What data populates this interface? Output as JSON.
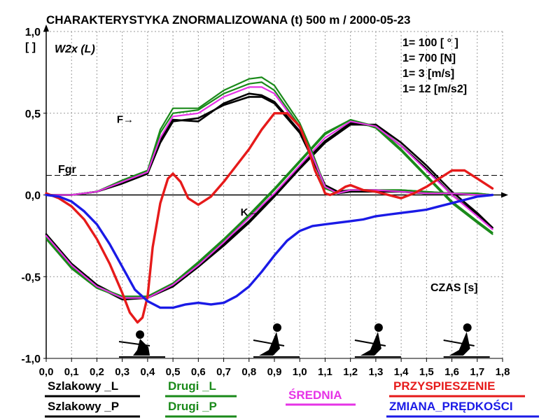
{
  "chart_data": {
    "type": "line",
    "title": "CHARAKTERYSTYKA ZNORMALIZOWANA (t)  500 m / 2000-05-23",
    "ylabel_unit": "[ ]",
    "subtitle": "W2x (L)",
    "xlabel": "CZAS  [s]",
    "xlim": [
      0,
      1.8
    ],
    "ylim": [
      -1,
      1
    ],
    "x_ticks": [
      "0,0",
      "0,1",
      "0,2",
      "0,3",
      "0,4",
      "0,5",
      "0,6",
      "0,7",
      "0,8",
      "0,9",
      "1,0",
      "1,1",
      "1,2",
      "1,3",
      "1,4",
      "1,5",
      "1,6",
      "1,7",
      "1,8"
    ],
    "y_ticks": [
      {
        "value": 1.0,
        "label": "1,0"
      },
      {
        "value": 0.5,
        "label": "0,5"
      },
      {
        "value": 0.0,
        "label": "0,0"
      },
      {
        "value": -0.5,
        "label": "-0,5"
      },
      {
        "value": -1.0,
        "label": "-1,0"
      }
    ],
    "grid": true,
    "scales": [
      "1= 100 [ ° ]",
      "1= 700 [N]",
      "1= 3 [m/s]",
      "1= 12 [m/s2]"
    ],
    "threshold": {
      "label": "Fgr",
      "value": 0.12
    },
    "annotations": [
      {
        "text": "F→",
        "x": 0.4,
        "y": 0.45
      },
      {
        "text": "K→",
        "x": 0.75,
        "y": -0.11
      }
    ],
    "series": [
      {
        "name": "Szlakowy _L",
        "color": "#000000",
        "group": "force",
        "x": [
          0,
          0.1,
          0.2,
          0.3,
          0.4,
          0.45,
          0.5,
          0.6,
          0.7,
          0.8,
          0.85,
          0.9,
          1.0,
          1.05,
          1.1,
          1.15,
          1.2,
          1.3,
          1.4,
          1.5,
          1.6,
          1.7,
          1.76
        ],
        "y": [
          0,
          0.0,
          0.02,
          0.07,
          0.13,
          0.32,
          0.45,
          0.47,
          0.55,
          0.6,
          0.6,
          0.56,
          0.38,
          0.22,
          0.05,
          0.01,
          0.02,
          0.02,
          0.02,
          0.01,
          0.01,
          0.0,
          0.0
        ]
      },
      {
        "name": "Szlakowy _P",
        "color": "#000000",
        "group": "force",
        "x": [
          0,
          0.1,
          0.2,
          0.3,
          0.4,
          0.45,
          0.5,
          0.6,
          0.7,
          0.8,
          0.85,
          0.9,
          1.0,
          1.05,
          1.1,
          1.15,
          1.2,
          1.3,
          1.4,
          1.5,
          1.6,
          1.7,
          1.76
        ],
        "y": [
          0,
          0.0,
          0.02,
          0.08,
          0.14,
          0.34,
          0.46,
          0.45,
          0.56,
          0.62,
          0.61,
          0.57,
          0.39,
          0.24,
          0.06,
          0.02,
          0.03,
          0.03,
          0.02,
          0.01,
          0.01,
          0.0,
          0.0
        ]
      },
      {
        "name": "Drugi _L",
        "color": "#1a8a1a",
        "group": "force",
        "x": [
          0,
          0.1,
          0.2,
          0.3,
          0.4,
          0.45,
          0.5,
          0.6,
          0.7,
          0.8,
          0.85,
          0.9,
          1.0,
          1.05,
          1.1,
          1.15,
          1.2,
          1.3,
          1.4,
          1.5,
          1.6,
          1.7,
          1.76
        ],
        "y": [
          0,
          0.0,
          0.02,
          0.09,
          0.15,
          0.38,
          0.5,
          0.52,
          0.62,
          0.68,
          0.69,
          0.64,
          0.42,
          0.24,
          0.04,
          0.01,
          0.03,
          0.03,
          0.03,
          0.02,
          0.01,
          0.01,
          0.0
        ]
      },
      {
        "name": "Drugi _P",
        "color": "#1a8a1a",
        "group": "force",
        "x": [
          0,
          0.1,
          0.2,
          0.3,
          0.4,
          0.45,
          0.5,
          0.6,
          0.7,
          0.8,
          0.85,
          0.9,
          1.0,
          1.05,
          1.1,
          1.15,
          1.2,
          1.3,
          1.4,
          1.5,
          1.6,
          1.7,
          1.76
        ],
        "y": [
          0,
          0.0,
          0.02,
          0.09,
          0.15,
          0.4,
          0.53,
          0.53,
          0.64,
          0.71,
          0.72,
          0.67,
          0.44,
          0.26,
          0.05,
          0.01,
          0.03,
          0.03,
          0.03,
          0.02,
          0.01,
          0.01,
          0.0
        ]
      },
      {
        "name": "ŚREDNIA",
        "color": "#e633e6",
        "group": "force",
        "x": [
          0,
          0.1,
          0.2,
          0.3,
          0.4,
          0.45,
          0.5,
          0.6,
          0.7,
          0.8,
          0.85,
          0.9,
          1.0,
          1.05,
          1.1,
          1.15,
          1.2,
          1.3,
          1.4,
          1.5,
          1.6,
          1.7,
          1.76
        ],
        "y": [
          0,
          0.0,
          0.02,
          0.08,
          0.14,
          0.35,
          0.48,
          0.5,
          0.6,
          0.66,
          0.66,
          0.62,
          0.41,
          0.24,
          0.05,
          0.01,
          0.03,
          0.03,
          0.02,
          0.01,
          0.01,
          0.0,
          0.0
        ]
      },
      {
        "name": "Szlakowy _L",
        "color": "#000000",
        "group": "angle",
        "x": [
          0,
          0.1,
          0.2,
          0.3,
          0.4,
          0.5,
          0.6,
          0.7,
          0.8,
          0.9,
          1.0,
          1.1,
          1.2,
          1.3,
          1.4,
          1.5,
          1.6,
          1.7,
          1.76
        ],
        "y": [
          -0.24,
          -0.42,
          -0.55,
          -0.63,
          -0.63,
          -0.55,
          -0.43,
          -0.3,
          -0.16,
          0.0,
          0.17,
          0.33,
          0.44,
          0.42,
          0.3,
          0.16,
          0.0,
          -0.12,
          -0.2
        ]
      },
      {
        "name": "Szlakowy _P",
        "color": "#000000",
        "group": "angle",
        "x": [
          0,
          0.1,
          0.2,
          0.3,
          0.4,
          0.5,
          0.6,
          0.7,
          0.8,
          0.9,
          1.0,
          1.1,
          1.2,
          1.3,
          1.4,
          1.5,
          1.6,
          1.7,
          1.76
        ],
        "y": [
          -0.25,
          -0.43,
          -0.56,
          -0.64,
          -0.63,
          -0.56,
          -0.44,
          -0.31,
          -0.17,
          -0.01,
          0.16,
          0.32,
          0.43,
          0.43,
          0.32,
          0.18,
          0.02,
          -0.11,
          -0.2
        ]
      },
      {
        "name": "Drugi _L",
        "color": "#1a8a1a",
        "group": "angle",
        "x": [
          0,
          0.1,
          0.2,
          0.3,
          0.4,
          0.5,
          0.6,
          0.7,
          0.8,
          0.9,
          1.0,
          1.1,
          1.2,
          1.3,
          1.4,
          1.5,
          1.6,
          1.7,
          1.76
        ],
        "y": [
          -0.26,
          -0.44,
          -0.56,
          -0.62,
          -0.62,
          -0.54,
          -0.42,
          -0.28,
          -0.13,
          0.03,
          0.2,
          0.37,
          0.46,
          0.42,
          0.28,
          0.12,
          -0.04,
          -0.16,
          -0.23
        ]
      },
      {
        "name": "Drugi _P",
        "color": "#1a8a1a",
        "group": "angle",
        "x": [
          0,
          0.1,
          0.2,
          0.3,
          0.4,
          0.5,
          0.6,
          0.7,
          0.8,
          0.9,
          1.0,
          1.1,
          1.2,
          1.3,
          1.4,
          1.5,
          1.6,
          1.7,
          1.76
        ],
        "y": [
          -0.27,
          -0.45,
          -0.57,
          -0.63,
          -0.62,
          -0.54,
          -0.41,
          -0.27,
          -0.12,
          0.04,
          0.21,
          0.38,
          0.46,
          0.41,
          0.27,
          0.11,
          -0.05,
          -0.17,
          -0.24
        ]
      },
      {
        "name": "ŚREDNIA",
        "color": "#e633e6",
        "group": "angle",
        "x": [
          0,
          0.1,
          0.2,
          0.3,
          0.4,
          0.5,
          0.6,
          0.7,
          0.8,
          0.9,
          1.0,
          1.1,
          1.2,
          1.3,
          1.4,
          1.5,
          1.6,
          1.7,
          1.76
        ],
        "y": [
          -0.25,
          -0.43,
          -0.56,
          -0.63,
          -0.63,
          -0.55,
          -0.43,
          -0.29,
          -0.14,
          0.01,
          0.18,
          0.35,
          0.45,
          0.42,
          0.3,
          0.15,
          0.0,
          -0.13,
          -0.21
        ]
      },
      {
        "name": "PRZYSPIESZENIE",
        "color": "#e61a1a",
        "group": "acc",
        "x": [
          0,
          0.05,
          0.1,
          0.15,
          0.2,
          0.25,
          0.3,
          0.33,
          0.36,
          0.38,
          0.4,
          0.42,
          0.45,
          0.48,
          0.5,
          0.53,
          0.56,
          0.6,
          0.65,
          0.7,
          0.75,
          0.8,
          0.85,
          0.9,
          0.95,
          1.0,
          1.03,
          1.06,
          1.09,
          1.1,
          1.12,
          1.15,
          1.18,
          1.2,
          1.25,
          1.3,
          1.35,
          1.4,
          1.45,
          1.5,
          1.55,
          1.6,
          1.65,
          1.7,
          1.76
        ],
        "y": [
          0.01,
          -0.02,
          -0.07,
          -0.15,
          -0.27,
          -0.42,
          -0.6,
          -0.72,
          -0.78,
          -0.75,
          -0.62,
          -0.32,
          -0.05,
          0.1,
          0.13,
          0.08,
          -0.02,
          -0.06,
          -0.01,
          0.08,
          0.18,
          0.28,
          0.4,
          0.5,
          0.5,
          0.42,
          0.3,
          0.15,
          0.05,
          0.01,
          0.0,
          0.02,
          0.05,
          0.06,
          0.03,
          0.02,
          0.0,
          -0.02,
          0.01,
          0.05,
          0.1,
          0.15,
          0.15,
          0.1,
          0.04
        ]
      },
      {
        "name": "ZMIANA_PRĘDKOŚCI",
        "color": "#1a1ae6",
        "group": "vel",
        "x": [
          0,
          0.05,
          0.1,
          0.15,
          0.2,
          0.25,
          0.3,
          0.35,
          0.4,
          0.45,
          0.5,
          0.55,
          0.6,
          0.65,
          0.7,
          0.75,
          0.8,
          0.85,
          0.9,
          0.95,
          1.0,
          1.05,
          1.1,
          1.15,
          1.2,
          1.25,
          1.3,
          1.35,
          1.4,
          1.45,
          1.5,
          1.55,
          1.6,
          1.65,
          1.7,
          1.76
        ],
        "y": [
          0.0,
          -0.01,
          -0.04,
          -0.1,
          -0.18,
          -0.3,
          -0.44,
          -0.58,
          -0.65,
          -0.69,
          -0.69,
          -0.67,
          -0.66,
          -0.67,
          -0.66,
          -0.62,
          -0.56,
          -0.47,
          -0.37,
          -0.28,
          -0.22,
          -0.19,
          -0.18,
          -0.17,
          -0.16,
          -0.15,
          -0.13,
          -0.12,
          -0.11,
          -0.1,
          -0.09,
          -0.07,
          -0.05,
          -0.03,
          -0.01,
          0.0
        ]
      }
    ],
    "legend": [
      {
        "label": "Szlakowy _L",
        "color": "#000000"
      },
      {
        "label": "Szlakowy _P",
        "color": "#000000"
      },
      {
        "label": "Drugi _L",
        "color": "#1a8a1a"
      },
      {
        "label": "Drugi _P",
        "color": "#1a8a1a"
      },
      {
        "label": "ŚREDNIA",
        "color": "#e633e6"
      },
      {
        "label": "PRZYSPIESZENIE",
        "color": "#e61a1a"
      },
      {
        "label": "ZMIANA_PRĘDKOŚCI",
        "color": "#1a1ae6"
      }
    ],
    "legend_placement": "bottom",
    "rower_icons": [
      {
        "name": "rower-catch-icon",
        "x": 0.37
      },
      {
        "name": "rower-drive-icon",
        "x": 0.9
      },
      {
        "name": "rower-finish-icon",
        "x": 1.3
      },
      {
        "name": "rower-recovery-icon",
        "x": 1.65
      }
    ]
  }
}
